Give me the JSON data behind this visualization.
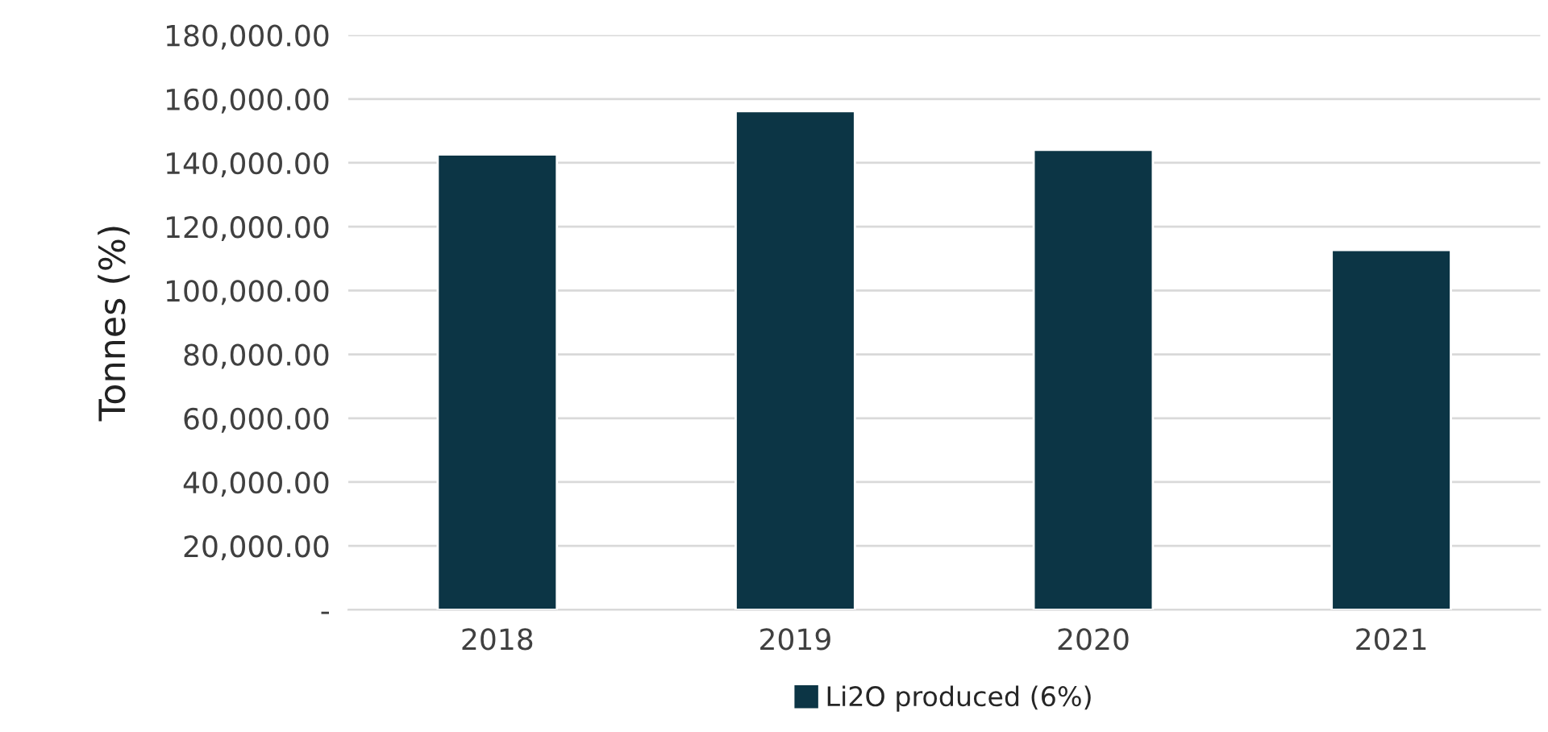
{
  "chart_data": {
    "type": "bar",
    "ylabel": "Tonnes (%)",
    "categories": [
      "2018",
      "2019",
      "2020",
      "2021"
    ],
    "series": [
      {
        "name": "Li2O produced (6%)",
        "color": "#0c3545",
        "values": [
          142600,
          156200,
          144100,
          112700
        ]
      }
    ],
    "ylim": [
      0,
      180000
    ],
    "yticks": [
      {
        "value": 0,
        "label": "-"
      },
      {
        "value": 20000,
        "label": "20,000.00"
      },
      {
        "value": 40000,
        "label": "40,000.00"
      },
      {
        "value": 60000,
        "label": "60,000.00"
      },
      {
        "value": 80000,
        "label": "80,000.00"
      },
      {
        "value": 100000,
        "label": "100,000.00"
      },
      {
        "value": 120000,
        "label": "120,000.00"
      },
      {
        "value": 140000,
        "label": "140,000.00"
      },
      {
        "value": 160000,
        "label": "160,000.00"
      },
      {
        "value": 180000,
        "label": "180,000.00"
      }
    ],
    "grid": "y",
    "legend": "bottom"
  }
}
